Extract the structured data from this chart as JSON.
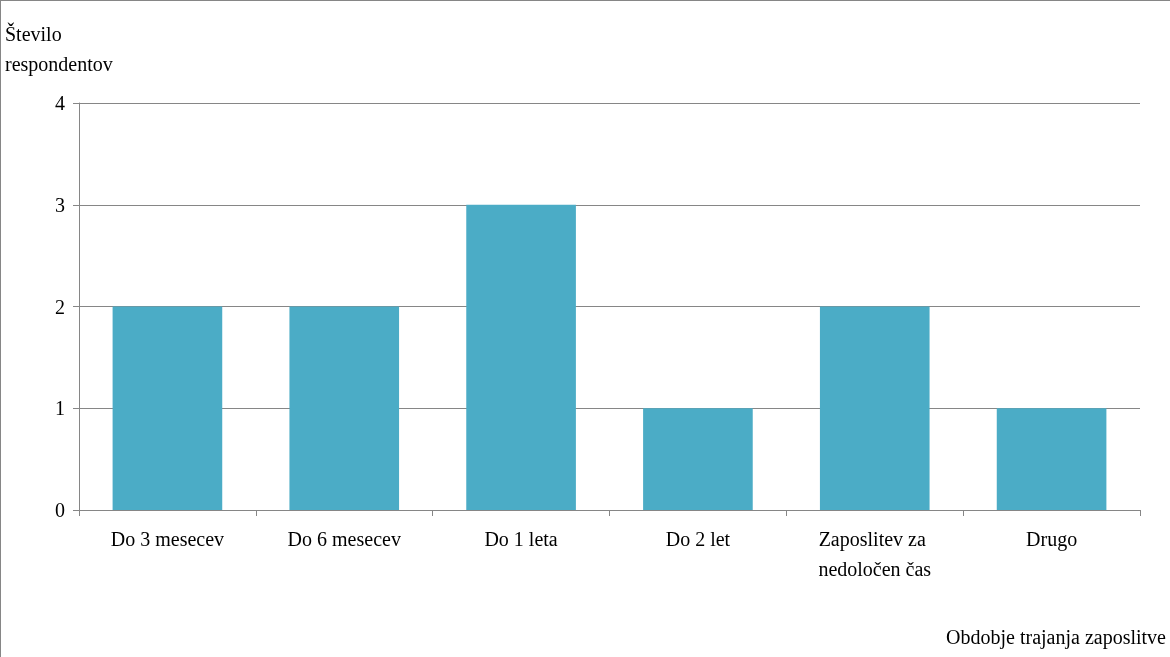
{
  "chart_data": {
    "type": "bar",
    "ylabel": "Število respondentov",
    "xlabel": "Obdobje trajanja zaposlitve",
    "categories": [
      "Do 3 mesecev",
      "Do 6 mesecev",
      "Do 1 leta",
      "Do 2 let",
      "Zaposlitev za nedoločen čas",
      "Drugo"
    ],
    "values": [
      2,
      2,
      3,
      1,
      2,
      1
    ],
    "color": "#4bacc6",
    "ylim": [
      0,
      4
    ],
    "yticks": [
      0,
      1,
      2,
      3,
      4
    ],
    "grid": "y"
  }
}
